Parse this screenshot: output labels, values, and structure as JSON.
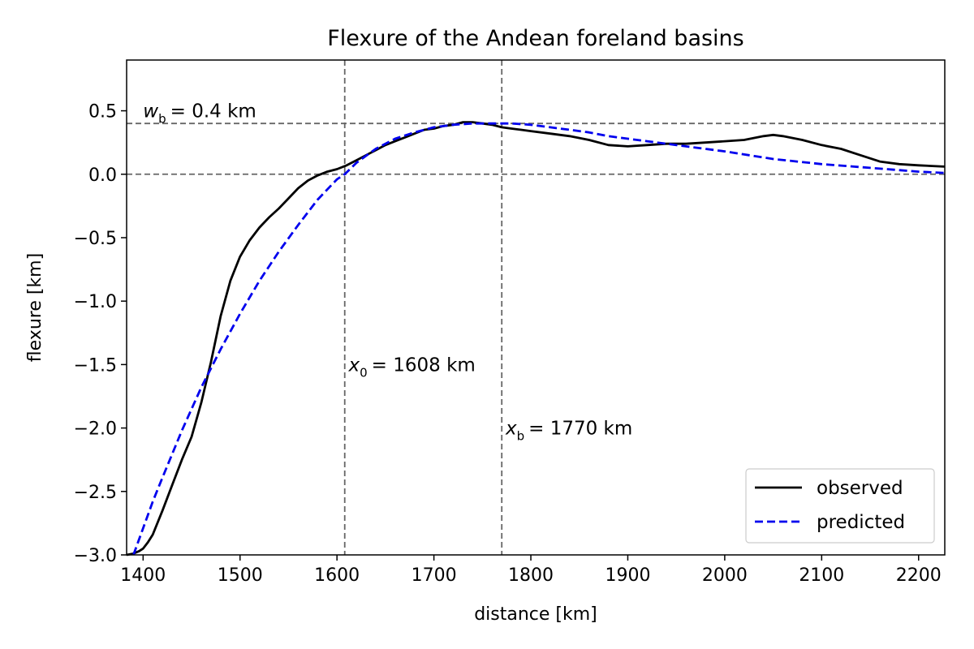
{
  "chart_data": {
    "type": "line",
    "title": "Flexure of the Andean foreland basins",
    "xlabel": "distance [km]",
    "ylabel": "flexure [km]",
    "xlim": [
      1383,
      2227
    ],
    "ylim": [
      -3.0,
      0.9
    ],
    "xticks": [
      1400,
      1500,
      1600,
      1700,
      1800,
      1900,
      2000,
      2100,
      2200
    ],
    "yticks": [
      -3.0,
      -2.5,
      -2.0,
      -1.5,
      -1.0,
      -0.5,
      0.0,
      0.5
    ],
    "xtick_labels": [
      "1400",
      "1500",
      "1600",
      "1700",
      "1800",
      "1900",
      "2000",
      "2100",
      "2200"
    ],
    "ytick_labels": [
      "−3.0",
      "−2.5",
      "−2.0",
      "−1.5",
      "−1.0",
      "−0.5",
      "0.0",
      "0.5"
    ],
    "grid": false,
    "legend_position": "lower-right",
    "reference_lines": {
      "horizontal": [
        0.4,
        0.0
      ],
      "vertical": [
        1608,
        1770
      ],
      "color": "#666666",
      "style": "dashed"
    },
    "annotations": {
      "wb": {
        "symbol": "w",
        "subscript": "b",
        "text": "= 0.4 km",
        "x": 1400,
        "y": 0.5
      },
      "x0": {
        "symbol": "x",
        "subscript": "0",
        "text": "= 1608 km",
        "x": 1612,
        "y": -1.5
      },
      "xb": {
        "symbol": "x",
        "subscript": "b",
        "text": "= 1770 km",
        "x": 1774,
        "y": -2.0
      }
    },
    "series": [
      {
        "name": "observed",
        "color": "#000000",
        "style": "solid",
        "x": [
          1383,
          1390,
          1396,
          1400,
          1405,
          1410,
          1420,
          1430,
          1440,
          1450,
          1460,
          1470,
          1480,
          1490,
          1500,
          1510,
          1520,
          1530,
          1540,
          1550,
          1560,
          1570,
          1580,
          1590,
          1600,
          1610,
          1620,
          1630,
          1640,
          1650,
          1660,
          1670,
          1680,
          1690,
          1700,
          1710,
          1720,
          1730,
          1740,
          1750,
          1760,
          1770,
          1780,
          1790,
          1800,
          1820,
          1840,
          1860,
          1880,
          1900,
          1920,
          1940,
          1960,
          1980,
          2000,
          2020,
          2040,
          2050,
          2060,
          2080,
          2100,
          2120,
          2140,
          2160,
          2180,
          2200,
          2227
        ],
        "values": [
          -3.0,
          -2.99,
          -2.97,
          -2.95,
          -2.9,
          -2.84,
          -2.65,
          -2.45,
          -2.25,
          -2.07,
          -1.8,
          -1.48,
          -1.12,
          -0.84,
          -0.65,
          -0.52,
          -0.42,
          -0.34,
          -0.27,
          -0.19,
          -0.11,
          -0.05,
          -0.01,
          0.02,
          0.04,
          0.07,
          0.11,
          0.15,
          0.19,
          0.23,
          0.26,
          0.29,
          0.32,
          0.35,
          0.36,
          0.38,
          0.39,
          0.41,
          0.41,
          0.4,
          0.39,
          0.37,
          0.36,
          0.35,
          0.34,
          0.32,
          0.3,
          0.27,
          0.23,
          0.22,
          0.23,
          0.24,
          0.24,
          0.25,
          0.26,
          0.27,
          0.3,
          0.31,
          0.3,
          0.27,
          0.23,
          0.2,
          0.15,
          0.1,
          0.08,
          0.07,
          0.06
        ]
      },
      {
        "name": "predicted",
        "color": "#0000ee",
        "style": "dashed",
        "x": [
          1390,
          1400,
          1410,
          1420,
          1440,
          1460,
          1480,
          1500,
          1520,
          1540,
          1560,
          1580,
          1600,
          1608,
          1620,
          1640,
          1660,
          1680,
          1700,
          1720,
          1740,
          1760,
          1770,
          1780,
          1800,
          1820,
          1840,
          1860,
          1880,
          1900,
          1920,
          1940,
          1960,
          1980,
          2000,
          2050,
          2100,
          2150,
          2200,
          2227
        ],
        "values": [
          -3.0,
          -2.79,
          -2.58,
          -2.39,
          -2.02,
          -1.68,
          -1.38,
          -1.1,
          -0.84,
          -0.61,
          -0.4,
          -0.2,
          -0.04,
          0.0,
          0.09,
          0.2,
          0.28,
          0.33,
          0.37,
          0.39,
          0.4,
          0.4,
          0.4,
          0.4,
          0.39,
          0.37,
          0.35,
          0.33,
          0.3,
          0.28,
          0.26,
          0.24,
          0.22,
          0.2,
          0.18,
          0.12,
          0.08,
          0.05,
          0.02,
          0.01
        ]
      }
    ]
  }
}
